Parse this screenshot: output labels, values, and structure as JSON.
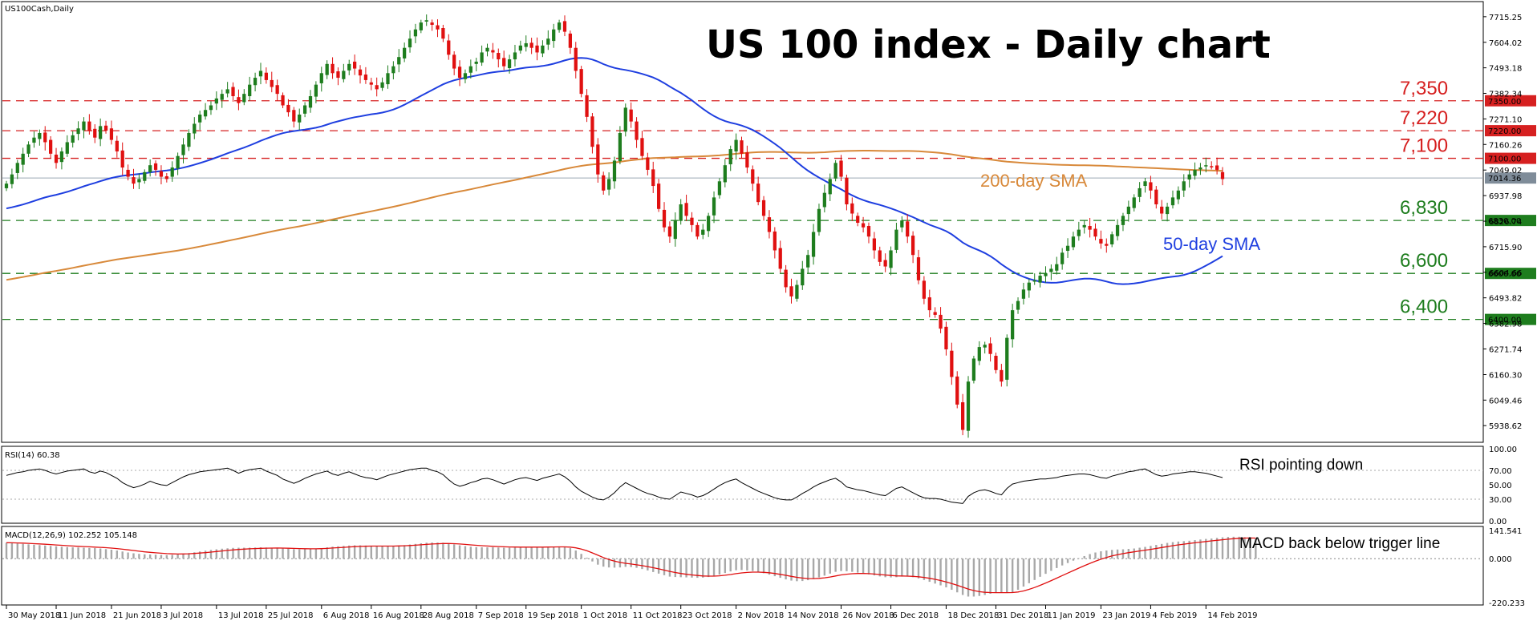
{
  "chart_data": [
    {
      "type": "candlestick",
      "symbol_label": "US100Cash,Daily",
      "title": "US 100 index - Daily chart",
      "colors": {
        "bull": "#1e7d1e",
        "bear": "#e01010",
        "sma50": "#1f3fe0",
        "sma200": "#d8893a"
      },
      "ylim": [
        5880,
        7760
      ],
      "y_ticks": [
        "7715.25",
        "7604.02",
        "7493.18",
        "7382.34",
        "7271.10",
        "7160.26",
        "7049.02",
        "6937.98",
        "6826.74",
        "6715.90",
        "6604.66",
        "6493.82",
        "6382.98",
        "6271.74",
        "6160.30",
        "6049.46",
        "5938.62"
      ],
      "x_ticks": [
        "30 May 2018",
        "11 Jun 2018",
        "21 Jun 2018",
        "3 Jul 2018",
        "13 Jul 2018",
        "25 Jul 2018",
        "6 Aug 2018",
        "16 Aug 2018",
        "28 Aug 2018",
        "7 Sep 2018",
        "19 Sep 2018",
        "1 Oct 2018",
        "11 Oct 2018",
        "23 Oct 2018",
        "2 Nov 2018",
        "14 Nov 2018",
        "26 Nov 2018",
        "6 Dec 2018",
        "18 Dec 2018",
        "31 Dec 2018",
        "11 Jan 2019",
        "23 Jan 2019",
        "4 Feb 2019",
        "14 Feb 2019"
      ],
      "current_price": "7014.36",
      "levels": [
        {
          "value": 7350,
          "label": "7,350",
          "tag": "7350.00",
          "color": "#d62020"
        },
        {
          "value": 7220,
          "label": "7,220",
          "tag": "7220.00",
          "color": "#d62020"
        },
        {
          "value": 7100,
          "label": "7,100",
          "tag": "7100.00",
          "color": "#d62020"
        },
        {
          "value": 6830,
          "label": "6,830",
          "tag": "6830.00",
          "color": "#1e7d1e"
        },
        {
          "value": 6600,
          "label": "6,600",
          "tag": "6600.00",
          "color": "#1e7d1e"
        },
        {
          "value": 6400,
          "label": "6,400",
          "tag": "6400.00",
          "color": "#1e7d1e"
        }
      ],
      "annotations": {
        "sma200": "200-day SMA",
        "sma50": "50-day SMA"
      },
      "closes": [
        6990,
        7030,
        7080,
        7120,
        7160,
        7190,
        7210,
        7170,
        7120,
        7080,
        7130,
        7170,
        7200,
        7230,
        7260,
        7220,
        7190,
        7240,
        7220,
        7180,
        7130,
        7060,
        7020,
        6990,
        7010,
        7040,
        7070,
        7050,
        7020,
        7010,
        7060,
        7110,
        7160,
        7210,
        7250,
        7290,
        7310,
        7330,
        7360,
        7380,
        7400,
        7370,
        7340,
        7380,
        7420,
        7450,
        7480,
        7440,
        7410,
        7380,
        7330,
        7300,
        7260,
        7290,
        7330,
        7370,
        7420,
        7470,
        7510,
        7470,
        7450,
        7480,
        7510,
        7490,
        7460,
        7440,
        7420,
        7400,
        7430,
        7470,
        7500,
        7540,
        7580,
        7620,
        7660,
        7690,
        7700,
        7680,
        7660,
        7620,
        7550,
        7490,
        7450,
        7470,
        7500,
        7520,
        7560,
        7580,
        7560,
        7530,
        7500,
        7530,
        7560,
        7590,
        7600,
        7580,
        7560,
        7590,
        7620,
        7660,
        7690,
        7650,
        7580,
        7480,
        7380,
        7280,
        7150,
        7030,
        6960,
        7010,
        7090,
        7210,
        7320,
        7260,
        7180,
        7110,
        7050,
        6980,
        6880,
        6800,
        6760,
        6830,
        6900,
        6850,
        6810,
        6760,
        6790,
        6850,
        6930,
        7000,
        7070,
        7140,
        7180,
        7120,
        7060,
        6990,
        6910,
        6850,
        6780,
        6700,
        6620,
        6540,
        6500,
        6550,
        6620,
        6680,
        6780,
        6880,
        6950,
        7010,
        7080,
        7020,
        6900,
        6860,
        6820,
        6800,
        6760,
        6700,
        6650,
        6630,
        6700,
        6790,
        6830,
        6760,
        6680,
        6570,
        6490,
        6440,
        6420,
        6360,
        6270,
        6150,
        6030,
        5920,
        6130,
        6230,
        6280,
        6290,
        6250,
        6180,
        6130,
        6320,
        6440,
        6480,
        6530,
        6560,
        6570,
        6590,
        6600,
        6620,
        6640,
        6690,
        6720,
        6760,
        6790,
        6810,
        6790,
        6760,
        6730,
        6720,
        6770,
        6810,
        6850,
        6890,
        6930,
        6970,
        7000,
        6960,
        6900,
        6860,
        6890,
        6930,
        6960,
        7000,
        7030,
        7050,
        7060,
        7070,
        7065,
        7050,
        7010
      ]
    },
    {
      "type": "line",
      "label": "RSI(14) 60.38",
      "ylim": [
        0,
        100
      ],
      "y_ticks": [
        "100.00",
        "70.00",
        "50.00",
        "30.00",
        "0.00"
      ],
      "annotation": "RSI pointing down",
      "values": [
        63,
        65,
        67,
        68,
        70,
        71,
        72,
        70,
        67,
        65,
        67,
        69,
        70,
        71,
        72,
        68,
        66,
        69,
        67,
        63,
        59,
        53,
        49,
        46,
        48,
        51,
        55,
        52,
        50,
        49,
        53,
        57,
        61,
        64,
        66,
        68,
        69,
        70,
        71,
        72,
        73,
        70,
        66,
        69,
        71,
        72,
        73,
        69,
        66,
        63,
        58,
        55,
        52,
        55,
        59,
        62,
        65,
        67,
        69,
        65,
        63,
        66,
        68,
        65,
        62,
        60,
        59,
        57,
        60,
        63,
        65,
        67,
        69,
        71,
        72,
        73,
        73,
        70,
        68,
        64,
        57,
        51,
        48,
        50,
        53,
        55,
        58,
        59,
        57,
        54,
        51,
        54,
        57,
        59,
        60,
        58,
        56,
        59,
        61,
        63,
        65,
        61,
        55,
        47,
        41,
        37,
        33,
        30,
        29,
        33,
        39,
        47,
        53,
        49,
        45,
        41,
        38,
        36,
        33,
        31,
        30,
        35,
        40,
        38,
        36,
        33,
        35,
        39,
        44,
        49,
        53,
        56,
        58,
        53,
        49,
        45,
        41,
        38,
        35,
        32,
        30,
        29,
        29,
        33,
        38,
        42,
        47,
        51,
        54,
        57,
        59,
        54,
        47,
        45,
        43,
        42,
        40,
        38,
        36,
        35,
        40,
        45,
        47,
        43,
        39,
        35,
        32,
        31,
        31,
        30,
        28,
        26,
        25,
        24,
        34,
        39,
        42,
        43,
        41,
        38,
        36,
        45,
        51,
        53,
        55,
        56,
        57,
        58,
        58,
        59,
        60,
        62,
        63,
        64,
        65,
        65,
        64,
        62,
        60,
        59,
        62,
        64,
        66,
        68,
        69,
        71,
        72,
        68,
        64,
        62,
        63,
        65,
        66,
        67,
        68,
        68,
        67,
        66,
        64,
        62,
        60
      ]
    },
    {
      "type": "bar+line",
      "label": "MACD(12,26,9) 102.252 105.148",
      "ylim": [
        -220.233,
        141.541
      ],
      "y_ticks": [
        "141.541",
        "0.000",
        "-220.233"
      ],
      "annotation": "MACD back below trigger line",
      "macd": [
        80,
        78,
        76,
        74,
        72,
        70,
        68,
        66,
        64,
        62,
        60,
        58,
        57,
        56,
        55,
        54,
        53,
        51,
        48,
        45,
        41,
        36,
        31,
        27,
        24,
        22,
        21,
        20,
        19,
        18,
        19,
        21,
        24,
        28,
        32,
        36,
        40,
        44,
        47,
        50,
        52,
        54,
        55,
        55,
        55,
        56,
        57,
        56,
        55,
        54,
        52,
        50,
        48,
        47,
        47,
        48,
        50,
        53,
        57,
        60,
        62,
        64,
        66,
        67,
        67,
        66,
        65,
        64,
        63,
        63,
        64,
        66,
        68,
        71,
        74,
        77,
        80,
        81,
        81,
        80,
        77,
        72,
        67,
        63,
        60,
        58,
        57,
        57,
        57,
        56,
        55,
        55,
        56,
        57,
        58,
        58,
        58,
        58,
        59,
        60,
        61,
        59,
        53,
        41,
        24,
        5,
        -14,
        -30,
        -40,
        -44,
        -45,
        -44,
        -41,
        -42,
        -46,
        -52,
        -59,
        -67,
        -75,
        -83,
        -90,
        -92,
        -93,
        -94,
        -95,
        -96,
        -95,
        -92,
        -87,
        -80,
        -72,
        -64,
        -58,
        -57,
        -59,
        -62,
        -67,
        -73,
        -80,
        -88,
        -96,
        -104,
        -110,
        -113,
        -112,
        -108,
        -102,
        -94,
        -85,
        -75,
        -66,
        -62,
        -63,
        -66,
        -70,
        -74,
        -79,
        -84,
        -89,
        -93,
        -94,
        -93,
        -90,
        -90,
        -93,
        -99,
        -107,
        -116,
        -125,
        -134,
        -144,
        -156,
        -169,
        -182,
        -190,
        -190,
        -187,
        -182,
        -176,
        -172,
        -170,
        -171,
        -168,
        -156,
        -140,
        -123,
        -107,
        -91,
        -76,
        -61,
        -47,
        -34,
        -22,
        -10,
        2,
        13,
        23,
        31,
        37,
        41,
        44,
        46,
        47,
        49,
        51,
        55,
        59,
        64,
        69,
        74,
        79,
        83,
        86,
        88,
        90,
        93,
        96,
        99,
        101,
        104,
        107,
        109,
        110,
        110,
        108,
        106,
        102
      ]
    }
  ]
}
